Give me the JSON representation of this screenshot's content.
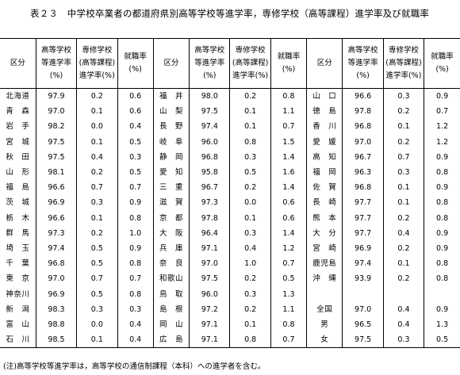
{
  "title": "表２３　中学校卒業者の都道府県別高等学校等進学率，専修学校（高等課程）進学率及び就職率",
  "headers": {
    "kubun": "区分",
    "high_school": [
      "高等学校",
      "等進学率",
      "(%)"
    ],
    "vocational": [
      "専修学校",
      "(高等課程)",
      "進学率(%)"
    ],
    "employment": [
      "就職率",
      "(%)"
    ]
  },
  "groups": [
    {
      "rows": [
        {
          "name": "北海道",
          "high": "97.9",
          "voc": "0.2",
          "emp": "0.6"
        },
        {
          "name": "青　森",
          "high": "97.0",
          "voc": "0.1",
          "emp": "0.6"
        },
        {
          "name": "岩　手",
          "high": "98.2",
          "voc": "0.0",
          "emp": "0.4"
        },
        {
          "name": "宮　城",
          "high": "97.5",
          "voc": "0.1",
          "emp": "0.5"
        },
        {
          "name": "秋　田",
          "high": "97.5",
          "voc": "0.4",
          "emp": "0.3"
        },
        {
          "name": "山　形",
          "high": "98.1",
          "voc": "0.2",
          "emp": "0.5"
        },
        {
          "name": "福　島",
          "high": "96.6",
          "voc": "0.7",
          "emp": "0.7"
        },
        {
          "name": "茨　城",
          "high": "96.9",
          "voc": "0.3",
          "emp": "0.9"
        },
        {
          "name": "栃　木",
          "high": "96.6",
          "voc": "0.1",
          "emp": "0.8"
        },
        {
          "name": "群　馬",
          "high": "97.3",
          "voc": "0.2",
          "emp": "1.0"
        },
        {
          "name": "埼　玉",
          "high": "97.4",
          "voc": "0.5",
          "emp": "0.9"
        },
        {
          "name": "千　葉",
          "high": "96.8",
          "voc": "0.5",
          "emp": "0.8"
        },
        {
          "name": "東　京",
          "high": "97.0",
          "voc": "0.7",
          "emp": "0.7"
        },
        {
          "name": "神奈川",
          "high": "96.9",
          "voc": "0.5",
          "emp": "0.8"
        },
        {
          "name": "新　潟",
          "high": "98.3",
          "voc": "0.3",
          "emp": "0.3"
        },
        {
          "name": "富　山",
          "high": "98.8",
          "voc": "0.0",
          "emp": "0.4"
        },
        {
          "name": "石　川",
          "high": "98.5",
          "voc": "0.1",
          "emp": "0.4"
        }
      ]
    },
    {
      "rows": [
        {
          "name": "福　井",
          "high": "98.0",
          "voc": "0.2",
          "emp": "0.8"
        },
        {
          "name": "山　梨",
          "high": "97.5",
          "voc": "0.1",
          "emp": "1.1"
        },
        {
          "name": "長　野",
          "high": "97.4",
          "voc": "0.1",
          "emp": "0.7"
        },
        {
          "name": "岐　阜",
          "high": "96.0",
          "voc": "0.8",
          "emp": "1.5"
        },
        {
          "name": "静　岡",
          "high": "96.8",
          "voc": "0.3",
          "emp": "1.4"
        },
        {
          "name": "愛　知",
          "high": "95.8",
          "voc": "0.5",
          "emp": "1.6"
        },
        {
          "name": "三　重",
          "high": "96.7",
          "voc": "0.2",
          "emp": "1.4"
        },
        {
          "name": "滋　賀",
          "high": "97.3",
          "voc": "0.0",
          "emp": "0.6"
        },
        {
          "name": "京　都",
          "high": "97.8",
          "voc": "0.1",
          "emp": "0.6"
        },
        {
          "name": "大　阪",
          "high": "96.4",
          "voc": "0.3",
          "emp": "1.4"
        },
        {
          "name": "兵　庫",
          "high": "97.1",
          "voc": "0.4",
          "emp": "1.2"
        },
        {
          "name": "奈　良",
          "high": "97.0",
          "voc": "1.0",
          "emp": "0.7"
        },
        {
          "name": "和歌山",
          "high": "97.5",
          "voc": "0.2",
          "emp": "0.5"
        },
        {
          "name": "鳥　取",
          "high": "96.0",
          "voc": "0.3",
          "emp": "1.3"
        },
        {
          "name": "島　根",
          "high": "97.2",
          "voc": "0.2",
          "emp": "1.1"
        },
        {
          "name": "岡　山",
          "high": "97.1",
          "voc": "0.1",
          "emp": "0.8"
        },
        {
          "name": "広　島",
          "high": "97.1",
          "voc": "0.8",
          "emp": "0.7"
        }
      ]
    },
    {
      "rows": [
        {
          "name": "山　口",
          "high": "96.6",
          "voc": "0.3",
          "emp": "0.9"
        },
        {
          "name": "徳　島",
          "high": "97.8",
          "voc": "0.2",
          "emp": "0.7"
        },
        {
          "name": "香　川",
          "high": "96.8",
          "voc": "0.1",
          "emp": "1.2"
        },
        {
          "name": "愛　媛",
          "high": "97.0",
          "voc": "0.2",
          "emp": "1.2"
        },
        {
          "name": "高　知",
          "high": "96.7",
          "voc": "0.7",
          "emp": "0.9"
        },
        {
          "name": "福　岡",
          "high": "96.3",
          "voc": "0.3",
          "emp": "0.8"
        },
        {
          "name": "佐　賀",
          "high": "96.8",
          "voc": "0.1",
          "emp": "0.9"
        },
        {
          "name": "長　崎",
          "high": "97.7",
          "voc": "0.1",
          "emp": "0.8"
        },
        {
          "name": "熊　本",
          "high": "97.7",
          "voc": "0.2",
          "emp": "0.8"
        },
        {
          "name": "大　分",
          "high": "97.7",
          "voc": "0.4",
          "emp": "0.9"
        },
        {
          "name": "宮　崎",
          "high": "96.9",
          "voc": "0.2",
          "emp": "0.9"
        },
        {
          "name": "鹿児島",
          "high": "97.4",
          "voc": "0.1",
          "emp": "0.8"
        },
        {
          "name": "沖　縄",
          "high": "93.9",
          "voc": "0.2",
          "emp": "0.8"
        },
        {
          "name": "",
          "high": "",
          "voc": "",
          "emp": ""
        },
        {
          "name": "全国",
          "high": "97.0",
          "voc": "0.4",
          "emp": "0.9"
        },
        {
          "name": "男",
          "high": "96.5",
          "voc": "0.4",
          "emp": "1.3"
        },
        {
          "name": "女",
          "high": "97.5",
          "voc": "0.3",
          "emp": "0.5"
        }
      ]
    }
  ],
  "note": "(注)高等学校等進学率は，高等学校の通信制課程（本科）への進学者を含む。"
}
